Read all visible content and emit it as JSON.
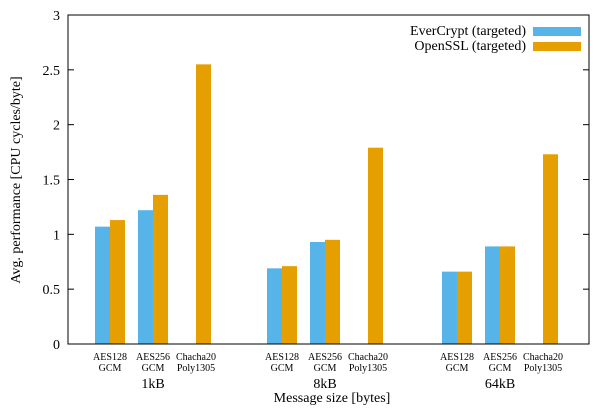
{
  "chart_data": {
    "type": "bar",
    "title": "",
    "xlabel": "Message size [bytes]",
    "ylabel": "Avg. performance [CPU cycles/byte]",
    "ylim": [
      0,
      3
    ],
    "yticks": [
      "0",
      "0.5",
      "1",
      "1.5",
      "2",
      "2.5",
      "3"
    ],
    "grid": false,
    "legend_position": "top-right",
    "groups": [
      "1kB",
      "8kB",
      "64kB"
    ],
    "subcategories": [
      [
        "AES128",
        "GCM"
      ],
      [
        "AES256",
        "GCM"
      ],
      [
        "Chacha20",
        "Poly1305"
      ]
    ],
    "series": [
      {
        "name": "EverCrypt (targeted)",
        "color": "#56b4e9",
        "values": [
          [
            1.07,
            1.22,
            null
          ],
          [
            0.69,
            0.93,
            null
          ],
          [
            0.66,
            0.89,
            null
          ]
        ]
      },
      {
        "name": "OpenSSL (targeted)",
        "color": "#e69f00",
        "values": [
          [
            1.13,
            1.36,
            2.55
          ],
          [
            0.71,
            0.95,
            1.79
          ],
          [
            0.66,
            0.89,
            1.73
          ]
        ]
      }
    ]
  }
}
